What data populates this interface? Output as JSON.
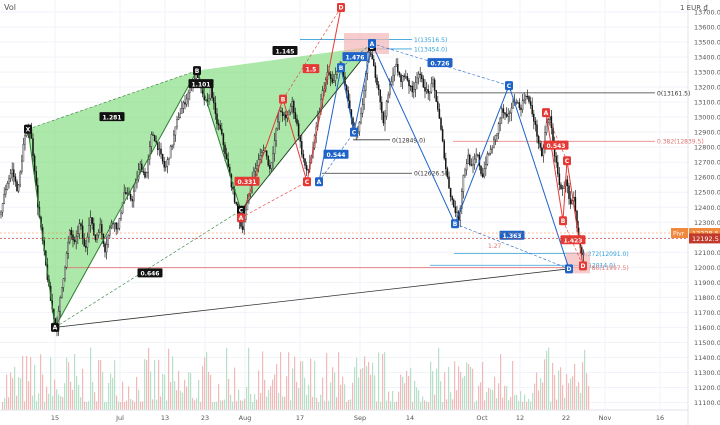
{
  "header": {
    "vol_label": "Vol",
    "currency": "1 EUR ₫"
  },
  "chart_data": {
    "type": "candlestick",
    "instrument_unit": "EUR",
    "price_axis": {
      "ylim": [
        11050,
        13780
      ],
      "ticks": [
        11100,
        11200,
        11300,
        11400,
        11500,
        11600,
        11700,
        11800,
        11900,
        12000,
        12100,
        12200,
        12300,
        12400,
        12500,
        12600,
        12700,
        12800,
        12900,
        13000,
        13100,
        13200,
        13300,
        13400,
        13500,
        13600,
        13700
      ],
      "price_badges": [
        {
          "label": "Pivr",
          "value": "12228.5",
          "color": "#f0883e",
          "y": 12228.5
        },
        {
          "label": "",
          "value": "12192.5",
          "color": "#c0392b",
          "y": 12192.5
        }
      ]
    },
    "time_axis": {
      "ticks": [
        "15",
        "Jul",
        "13",
        "23",
        "Aug",
        "17",
        "Sep",
        "14",
        "Oct",
        "12",
        "22",
        "Nov",
        "16"
      ]
    },
    "price_path": [
      [
        0,
        12350
      ],
      [
        7,
        12560
      ],
      [
        12,
        12650
      ],
      [
        18,
        12500
      ],
      [
        24,
        12850
      ],
      [
        30,
        12930
      ],
      [
        34,
        12700
      ],
      [
        38,
        12400
      ],
      [
        43,
        12150
      ],
      [
        47,
        11950
      ],
      [
        51,
        11760
      ],
      [
        55,
        11630
      ],
      [
        57,
        11600
      ],
      [
        61,
        11830
      ],
      [
        66,
        12060
      ],
      [
        70,
        12240
      ],
      [
        75,
        12150
      ],
      [
        80,
        12300
      ],
      [
        85,
        12100
      ],
      [
        90,
        12350
      ],
      [
        95,
        12180
      ],
      [
        100,
        12280
      ],
      [
        105,
        12120
      ],
      [
        112,
        12320
      ],
      [
        118,
        12250
      ],
      [
        124,
        12500
      ],
      [
        132,
        12450
      ],
      [
        140,
        12680
      ],
      [
        146,
        12600
      ],
      [
        152,
        12900
      ],
      [
        158,
        12800
      ],
      [
        165,
        12650
      ],
      [
        172,
        12820
      ],
      [
        178,
        13000
      ],
      [
        186,
        13120
      ],
      [
        192,
        13230
      ],
      [
        197,
        13300
      ],
      [
        202,
        13150
      ],
      [
        207,
        13080
      ],
      [
        211,
        13200
      ],
      [
        216,
        12980
      ],
      [
        221,
        12900
      ],
      [
        227,
        12700
      ],
      [
        233,
        12500
      ],
      [
        238,
        12350
      ],
      [
        242,
        12250
      ],
      [
        246,
        12380
      ],
      [
        252,
        12600
      ],
      [
        258,
        12700
      ],
      [
        264,
        12800
      ],
      [
        270,
        12650
      ],
      [
        276,
        12900
      ],
      [
        280,
        13050
      ],
      [
        286,
        12980
      ],
      [
        292,
        13100
      ],
      [
        297,
        12950
      ],
      [
        302,
        12760
      ],
      [
        307,
        12620
      ],
      [
        312,
        12760
      ],
      [
        317,
        12950
      ],
      [
        322,
        13150
      ],
      [
        328,
        13300
      ],
      [
        333,
        13210
      ],
      [
        338,
        13350
      ],
      [
        343,
        13280
      ],
      [
        348,
        13120
      ],
      [
        352,
        12950
      ],
      [
        357,
        12860
      ],
      [
        362,
        13050
      ],
      [
        366,
        13300
      ],
      [
        370,
        13450
      ],
      [
        374,
        13320
      ],
      [
        379,
        13180
      ],
      [
        383,
        12950
      ],
      [
        387,
        13100
      ],
      [
        391,
        13250
      ],
      [
        396,
        13350
      ],
      [
        400,
        13250
      ],
      [
        406,
        13280
      ],
      [
        412,
        13160
      ],
      [
        418,
        13300
      ],
      [
        423,
        13220
      ],
      [
        428,
        13150
      ],
      [
        433,
        13230
      ],
      [
        438,
        13050
      ],
      [
        442,
        12860
      ],
      [
        446,
        12650
      ],
      [
        450,
        12500
      ],
      [
        454,
        12400
      ],
      [
        459,
        12320
      ],
      [
        463,
        12600
      ],
      [
        468,
        12740
      ],
      [
        472,
        12650
      ],
      [
        477,
        12760
      ],
      [
        482,
        12600
      ],
      [
        487,
        12730
      ],
      [
        492,
        12800
      ],
      [
        497,
        12900
      ],
      [
        502,
        13050
      ],
      [
        507,
        12980
      ],
      [
        512,
        13080
      ],
      [
        516,
        13120
      ],
      [
        520,
        13050
      ],
      [
        526,
        13160
      ],
      [
        530,
        13080
      ],
      [
        534,
        12980
      ],
      [
        538,
        12850
      ],
      [
        542,
        12720
      ],
      [
        546,
        12950
      ],
      [
        550,
        13000
      ],
      [
        554,
        12780
      ],
      [
        558,
        12600
      ],
      [
        562,
        12500
      ],
      [
        566,
        12600
      ],
      [
        570,
        12400
      ],
      [
        574,
        12450
      ],
      [
        577,
        12250
      ],
      [
        580,
        12120
      ],
      [
        583,
        12060
      ],
      [
        585,
        12192
      ]
    ],
    "volume_profile": "red and green vertical volume bars along the bottom",
    "patterns": [
      {
        "name": "green_bat",
        "color": "#58c16b",
        "points": [
          {
            "label": "X",
            "t": 28,
            "p": 12920
          },
          {
            "label": "A",
            "t": 55,
            "p": 11600
          },
          {
            "label": "B",
            "t": 197,
            "p": 13310
          },
          {
            "label": "C",
            "t": 241,
            "p": 12380
          },
          {
            "label": "D",
            "t": 372,
            "p": 13470
          }
        ],
        "ratios": [
          {
            "text": "1.281",
            "t": 112,
            "p": 13000
          },
          {
            "text": "1.101",
            "t": 201,
            "p": 13220
          },
          {
            "text": "1.145",
            "t": 285,
            "p": 13440
          },
          {
            "text": "0.646",
            "t": 150,
            "p": 11960
          }
        ]
      },
      {
        "name": "red_abcd_1",
        "color": "#e53935",
        "points": [
          {
            "label": "A",
            "t": 241,
            "p": 12330
          },
          {
            "label": "B",
            "t": 283,
            "p": 13120
          },
          {
            "label": "C",
            "t": 307,
            "p": 12570
          },
          {
            "label": "D",
            "t": 341,
            "p": 13730
          }
        ],
        "ratios": [
          {
            "text": "1.5",
            "t": 311,
            "p": 13320
          },
          {
            "text": "0.331",
            "t": 247,
            "p": 12570
          }
        ]
      },
      {
        "name": "blue_abcd_1",
        "color": "#1e63c8",
        "points": [
          {
            "label": "A",
            "t": 319,
            "p": 12570
          },
          {
            "label": "B",
            "t": 341,
            "p": 13330
          },
          {
            "label": "C",
            "t": 354,
            "p": 12900
          },
          {
            "label": "D",
            "t": 372,
            "p": 13490
          }
        ],
        "ratios": [
          {
            "text": "1.476",
            "t": 355,
            "p": 13400
          },
          {
            "text": "0.544",
            "t": 336,
            "p": 12750
          }
        ]
      },
      {
        "name": "blue_abcd_2",
        "color": "#1e63c8",
        "points": [
          {
            "label": "A",
            "t": 372,
            "p": 13490
          },
          {
            "label": "B",
            "t": 455,
            "p": 12290
          },
          {
            "label": "C",
            "t": 509,
            "p": 13210
          },
          {
            "label": "D",
            "t": 569,
            "p": 11990
          }
        ],
        "ratios": [
          {
            "text": "0.726",
            "t": 440,
            "p": 13360
          },
          {
            "text": "1.363",
            "t": 512,
            "p": 12210
          }
        ]
      },
      {
        "name": "red_abcd_2",
        "color": "#e53935",
        "points": [
          {
            "label": "A",
            "t": 546,
            "p": 13030
          },
          {
            "label": "B",
            "t": 563,
            "p": 12310
          },
          {
            "label": "C",
            "t": 567,
            "p": 12710
          },
          {
            "label": "D",
            "t": 583,
            "p": 12010
          }
        ],
        "ratios": [
          {
            "text": "0.543",
            "t": 556,
            "p": 12810
          },
          {
            "text": "1.423",
            "t": 573,
            "p": 12180
          }
        ]
      }
    ],
    "levels": [
      {
        "text": "1(13516.5)",
        "price": 13516.5,
        "t1": 300,
        "t2": 412,
        "color": "#33a0d6"
      },
      {
        "text": "1(13454.0)",
        "price": 13454.0,
        "t1": 368,
        "t2": 412,
        "color": "#33a0d6"
      },
      {
        "text": "0(13161.5)",
        "price": 13161.5,
        "t1": 437,
        "t2": 655,
        "color": "#333333"
      },
      {
        "text": "0.382(12839.5)",
        "price": 12839.5,
        "t1": 453,
        "t2": 655,
        "color": "#e57373"
      },
      {
        "text": "0(12849.0)",
        "price": 12849.0,
        "t1": 353,
        "t2": 390,
        "color": "#333333"
      },
      {
        "text": "0(12626.5)",
        "price": 12626.5,
        "t1": 322,
        "t2": 412,
        "color": "#333333"
      },
      {
        "text": "1.272(12091.0)",
        "price": 12091.0,
        "t1": 454,
        "t2": 580,
        "color": "#33a0d6"
      },
      {
        "text": "1(12014.0)",
        "price": 12014.0,
        "t1": 430,
        "t2": 580,
        "color": "#33a0d6"
      },
      {
        "text": "0.786(11997.5)",
        "price": 11997.5,
        "t1": 66,
        "t2": 580,
        "color": "#e57373"
      }
    ],
    "small_labels": [
      {
        "text": "1.27",
        "t": 488,
        "p": 12130,
        "color": "#e57373"
      }
    ]
  }
}
